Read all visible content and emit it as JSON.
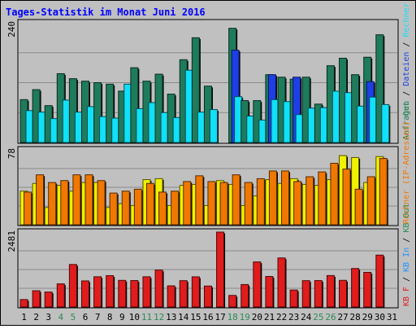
{
  "title": "Tages-Statistik im Monat Juni 2016",
  "colors": {
    "frame_bg": "#c0c0c0",
    "plot_bg": "#c0c0c0",
    "title": "#0000ff",
    "hits": "#1e7b5b",
    "files": "#1e3fe6",
    "sites": "#10e0f8",
    "kb_in": "#f0f000",
    "kb_out": "#f07800",
    "visits": "#e01c1c",
    "day_normal": "#000000",
    "day_weekend": "#2e8b57",
    "ylabel_anfragen": "#1e7b5b",
    "ylabel_dateien": "#1e3fe6",
    "ylabel_rechner": "#f07800",
    "ylabel_kbin": "#1e90ff",
    "ylabel_besuche": "#e01c1c",
    "ylabel_kbout": "#2e8b57"
  },
  "right_labels": {
    "top": [
      {
        "text": "Anfragen",
        "color": "ylabel_anfragen"
      },
      {
        "text": " / ",
        "color": "day_normal"
      },
      {
        "text": "Dateien",
        "color": "ylabel_dateien"
      },
      {
        "text": " / ",
        "color": "day_normal"
      },
      {
        "text": "Rechner (IP-Adressen)",
        "color": "sites"
      }
    ],
    "middle": [
      {
        "text": "Rechner (IP-Adressen) ",
        "color": "ylabel_rechner"
      },
      {
        "text": "Out",
        "color": "ylabel_kbout"
      }
    ],
    "bottom": [
      {
        "text": "KB F",
        "color": "ylabel_besuche"
      },
      {
        "text": " / ",
        "color": "day_normal"
      },
      {
        "text": "KB In",
        "color": "ylabel_kbin"
      },
      {
        "text": " / ",
        "color": "day_normal"
      },
      {
        "text": "KB Out",
        "color": "ylabel_kbout"
      }
    ]
  },
  "chart_data": [
    {
      "type": "bar",
      "title": "Tages-Statistik im Monat Juni 2016",
      "ymax_label": "240",
      "ylim": [
        0,
        240
      ],
      "categories": [
        "1",
        "2",
        "3",
        "4",
        "5",
        "6",
        "7",
        "8",
        "9",
        "10",
        "11",
        "12",
        "13",
        "14",
        "15",
        "16",
        "17",
        "18",
        "19",
        "20",
        "21",
        "22",
        "23",
        "24",
        "25",
        "26",
        "27",
        "28",
        "29",
        "30",
        "31"
      ],
      "weekend_days": [
        "4",
        "5",
        "11",
        "12",
        "18",
        "19",
        "25",
        "26"
      ],
      "grid": true,
      "series": [
        {
          "name": "Anfragen",
          "color": "hits",
          "values": [
            86,
            106,
            74,
            138,
            128,
            123,
            120,
            117,
            103,
            150,
            123,
            137,
            97,
            166,
            210,
            113,
            0,
            229,
            84,
            84,
            136,
            131,
            127,
            131,
            77,
            154,
            169,
            136,
            171,
            216,
            0
          ]
        },
        {
          "name": "Dateien",
          "color": "files",
          "values": [
            0,
            0,
            0,
            0,
            0,
            0,
            0,
            0,
            0,
            0,
            0,
            0,
            0,
            0,
            0,
            0,
            0,
            185,
            0,
            0,
            136,
            0,
            131,
            0,
            0,
            0,
            0,
            0,
            122,
            0,
            0
          ]
        },
        {
          "name": "Rechner",
          "color": "sites",
          "values": [
            64,
            61,
            48,
            85,
            61,
            72,
            52,
            49,
            117,
            68,
            80,
            60,
            50,
            145,
            61,
            66,
            0,
            92,
            53,
            45,
            86,
            82,
            56,
            69,
            70,
            103,
            100,
            73,
            91,
            76,
            0
          ]
        }
      ]
    },
    {
      "type": "bar",
      "ymax_label": "78",
      "ylim": [
        0,
        78
      ],
      "categories": [
        "1",
        "2",
        "3",
        "4",
        "5",
        "6",
        "7",
        "8",
        "9",
        "10",
        "11",
        "12",
        "13",
        "14",
        "15",
        "16",
        "17",
        "18",
        "19",
        "20",
        "21",
        "22",
        "23",
        "24",
        "25",
        "26",
        "27",
        "28",
        "29",
        "30",
        "31"
      ],
      "grid": true,
      "series": [
        {
          "name": "KB In",
          "color": "kb_in",
          "values": [
            35,
            43,
            18,
            41,
            35,
            44,
            44,
            18,
            22,
            20,
            47,
            48,
            20,
            41,
            42,
            20,
            46,
            42,
            20,
            30,
            47,
            43,
            48,
            42,
            41,
            47,
            72,
            70,
            44,
            71,
            0
          ]
        },
        {
          "name": "KB Out",
          "color": "kb_out",
          "values": [
            34,
            52,
            44,
            46,
            52,
            52,
            46,
            33,
            35,
            37,
            43,
            34,
            35,
            45,
            51,
            45,
            44,
            52,
            44,
            48,
            56,
            56,
            45,
            50,
            55,
            64,
            58,
            37,
            50,
            69,
            0
          ]
        }
      ]
    },
    {
      "type": "bar",
      "ymax_label": "2481",
      "ylim": [
        0,
        2481
      ],
      "categories": [
        "1",
        "2",
        "3",
        "4",
        "5",
        "6",
        "7",
        "8",
        "9",
        "10",
        "11",
        "12",
        "13",
        "14",
        "15",
        "16",
        "17",
        "18",
        "19",
        "20",
        "21",
        "22",
        "23",
        "24",
        "25",
        "26",
        "27",
        "28",
        "29",
        "30",
        "31"
      ],
      "grid": true,
      "series": [
        {
          "name": "KB F",
          "color": "visits",
          "values": [
            247,
            538,
            496,
            767,
            1408,
            864,
            1002,
            1039,
            882,
            876,
            1002,
            1222,
            700,
            872,
            1000,
            694,
            2481,
            384,
            744,
            1493,
            1012,
            1625,
            562,
            872,
            875,
            1042,
            883,
            1275,
            1147,
            1719,
            0
          ]
        }
      ]
    }
  ]
}
